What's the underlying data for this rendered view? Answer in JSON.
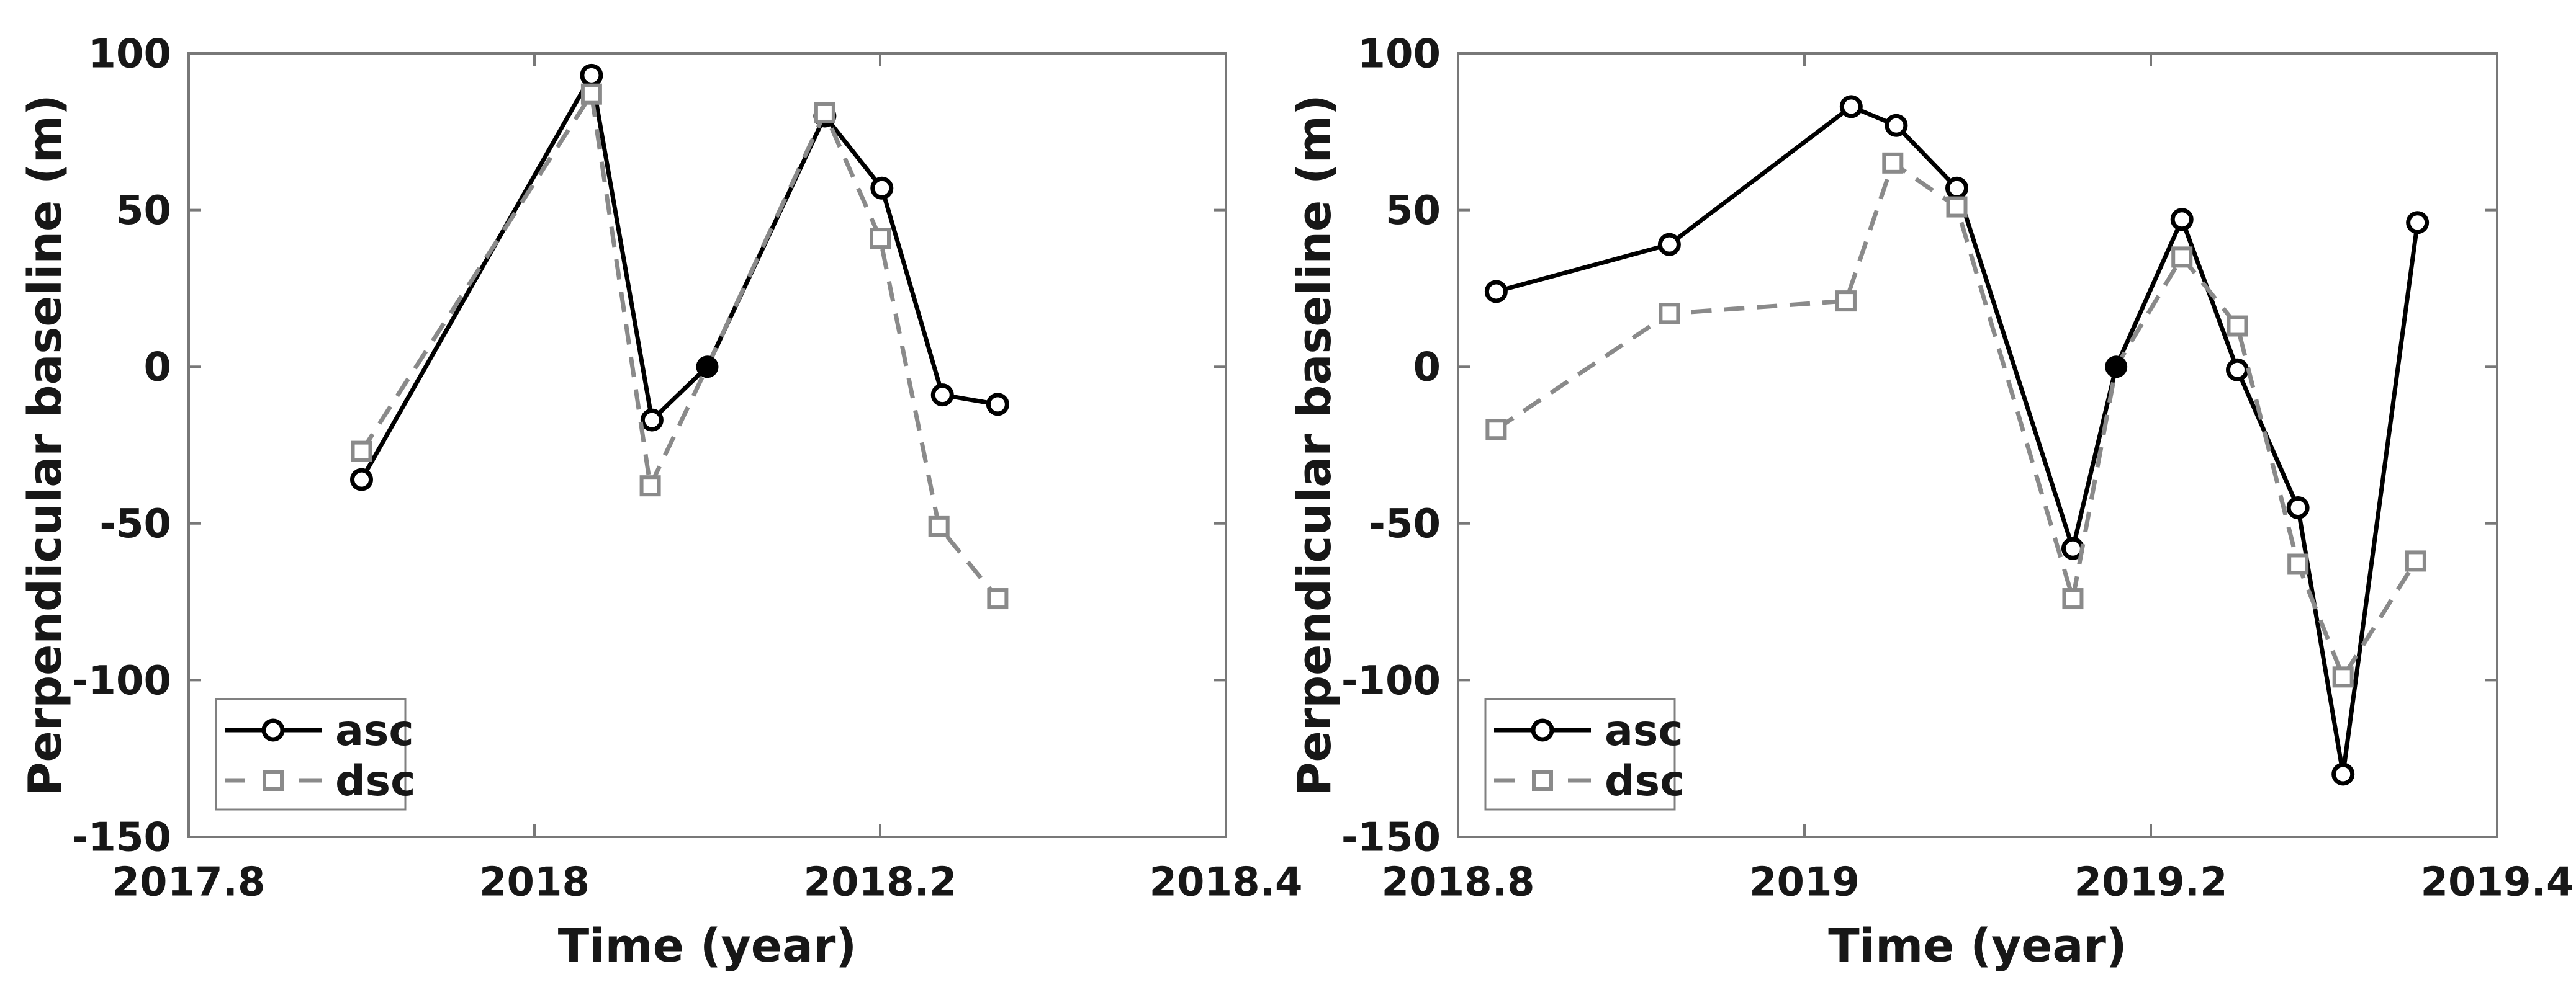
{
  "figure": {
    "background": "#ffffff",
    "axis_color": "#787878",
    "text_color": "#171717",
    "asc_color": "#000000",
    "dsc_color": "#8a8a8a",
    "reference_dot_color": "#000000"
  },
  "chart_data": [
    {
      "type": "line",
      "position": "left",
      "title": "",
      "xlabel": "Time (year)",
      "ylabel": "Perpendicular baseline (m)",
      "xlim": [
        2017.8,
        2018.4
      ],
      "ylim": [
        -150,
        100
      ],
      "xticks": [
        2017.8,
        2018.0,
        2018.2,
        2018.4
      ],
      "xtick_labels": [
        "2017.8",
        "2018",
        "2018.2",
        "2018.4"
      ],
      "yticks": [
        100,
        50,
        0,
        -50,
        -100,
        -150
      ],
      "ytick_labels": [
        "100",
        "50",
        "0",
        "-50",
        "-100",
        "-150"
      ],
      "grid": false,
      "legend_position": "bottom-left",
      "reference_point": [
        2018.1,
        0
      ],
      "series": [
        {
          "name": "asc",
          "line": "solid",
          "marker": "circle",
          "points": [
            [
              2017.9,
              -36
            ],
            [
              2018.033,
              93
            ],
            [
              2018.068,
              -17
            ],
            [
              2018.1,
              0
            ],
            [
              2018.168,
              80
            ],
            [
              2018.201,
              57
            ],
            [
              2018.236,
              -9
            ],
            [
              2018.268,
              -12
            ]
          ]
        },
        {
          "name": "dsc",
          "line": "dashed",
          "marker": "square",
          "points": [
            [
              2017.9,
              -27
            ],
            [
              2018.033,
              87
            ],
            [
              2018.067,
              -38
            ],
            [
              2018.1,
              0
            ],
            [
              2018.168,
              81
            ],
            [
              2018.2,
              41
            ],
            [
              2018.234,
              -51
            ],
            [
              2018.268,
              -74
            ]
          ]
        }
      ]
    },
    {
      "type": "line",
      "position": "right",
      "title": "",
      "xlabel": "Time (year)",
      "ylabel": "Perpendicular baseline (m)",
      "xlim": [
        2018.8,
        2019.4
      ],
      "ylim": [
        -150,
        100
      ],
      "xticks": [
        2018.8,
        2019.0,
        2019.2,
        2019.4
      ],
      "xtick_labels": [
        "2018.8",
        "2019",
        "2019.2",
        "2019.4"
      ],
      "yticks": [
        100,
        50,
        0,
        -50,
        -100,
        -150
      ],
      "ytick_labels": [
        "100",
        "50",
        "0",
        "-50",
        "-100",
        "-150"
      ],
      "grid": false,
      "legend_position": "bottom-left",
      "reference_point": [
        2019.18,
        0
      ],
      "series": [
        {
          "name": "asc",
          "line": "solid",
          "marker": "circle",
          "points": [
            [
              2018.822,
              24
            ],
            [
              2018.922,
              39
            ],
            [
              2019.027,
              83
            ],
            [
              2019.053,
              77
            ],
            [
              2019.088,
              57
            ],
            [
              2019.155,
              -58
            ],
            [
              2019.18,
              0
            ],
            [
              2019.218,
              47
            ],
            [
              2019.25,
              -1
            ],
            [
              2019.285,
              -45
            ],
            [
              2019.311,
              -130
            ],
            [
              2019.354,
              46
            ]
          ]
        },
        {
          "name": "dsc",
          "line": "dashed",
          "marker": "square",
          "points": [
            [
              2018.822,
              -20
            ],
            [
              2018.922,
              17
            ],
            [
              2019.024,
              21
            ],
            [
              2019.051,
              65
            ],
            [
              2019.088,
              51
            ],
            [
              2019.155,
              -74
            ],
            [
              2019.18,
              0
            ],
            [
              2019.218,
              35
            ],
            [
              2019.25,
              13
            ],
            [
              2019.285,
              -63
            ],
            [
              2019.311,
              -99
            ],
            [
              2019.353,
              -62
            ]
          ]
        }
      ]
    }
  ]
}
